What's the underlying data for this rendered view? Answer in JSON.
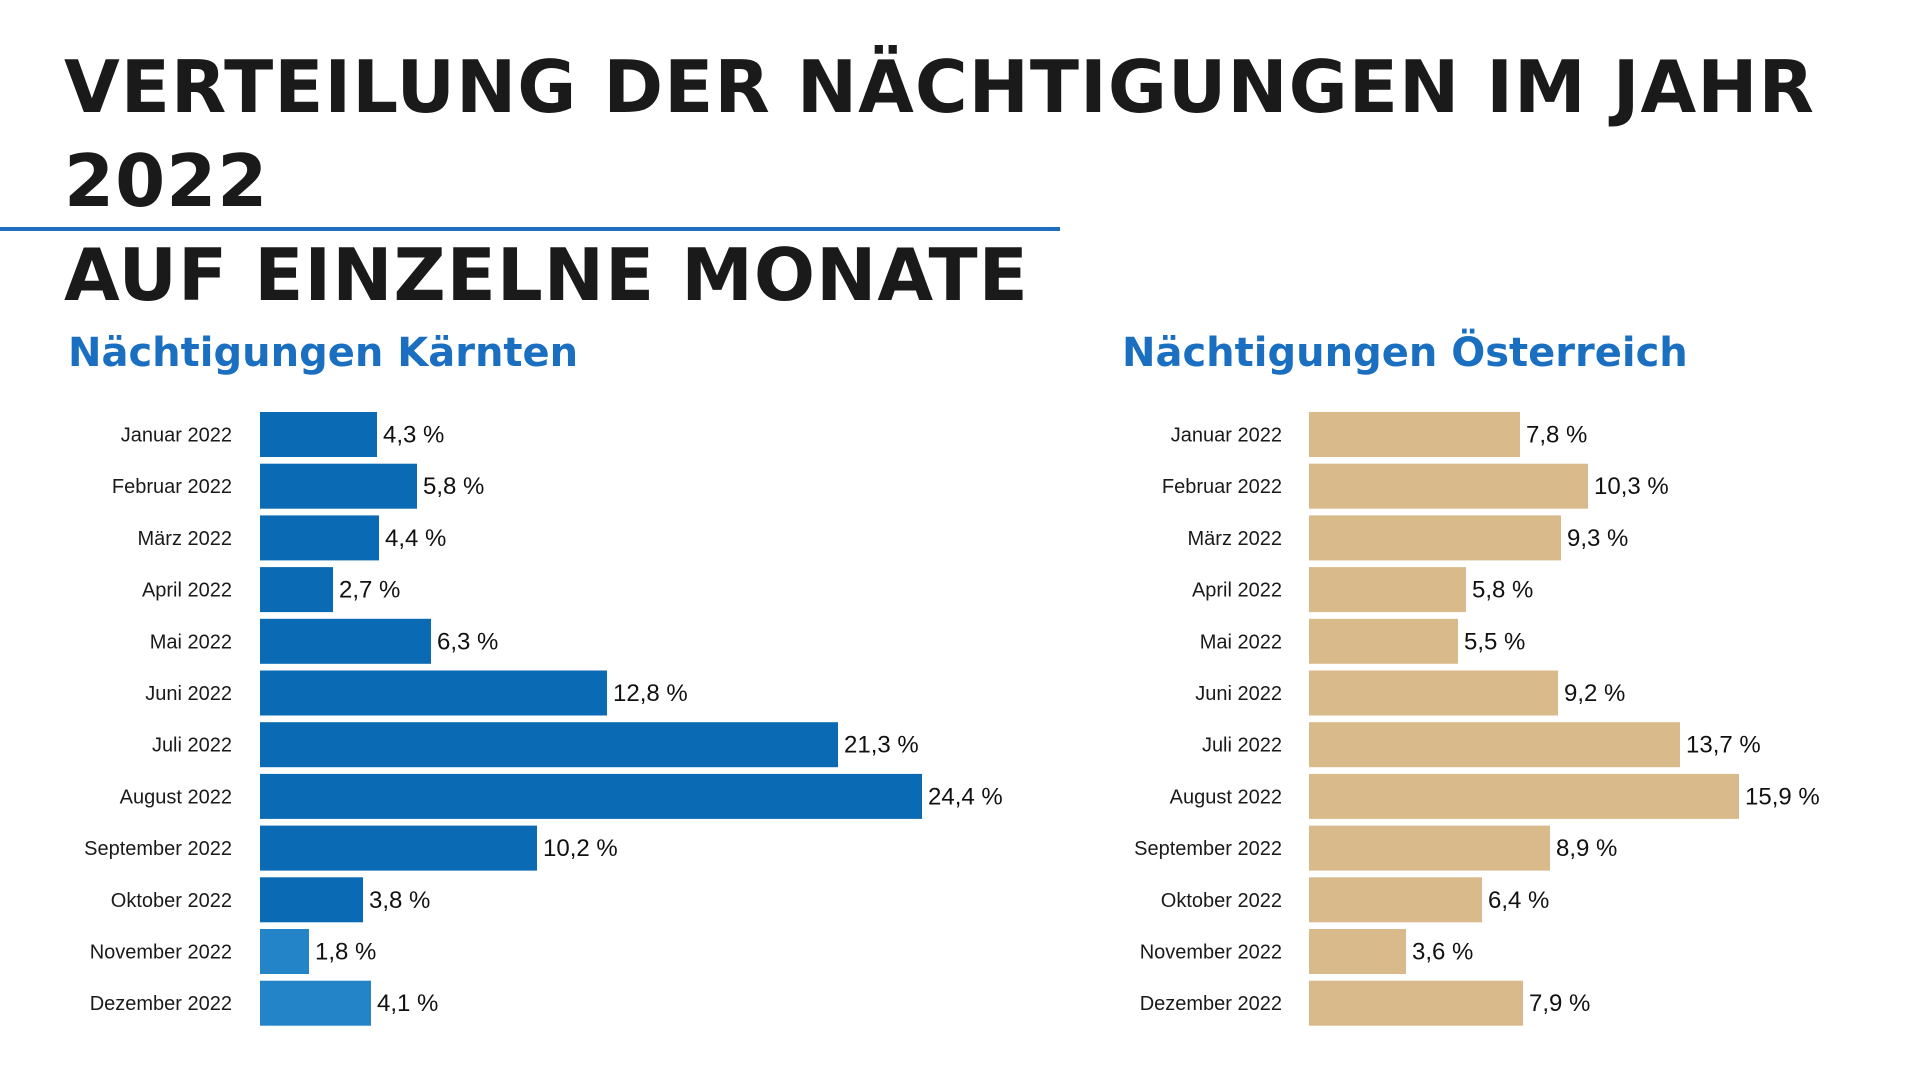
{
  "page": {
    "title_line1": "VERTEILUNG DER NÄCHTIGUNGEN IM JAHR 2022",
    "title_line2": "AUF EINZELNE MONATE"
  },
  "chart_data": [
    {
      "type": "bar",
      "orientation": "horizontal",
      "title": "Nächtigungen Kärnten",
      "categories": [
        "Januar 2022",
        "Februar 2022",
        "März 2022",
        "April 2022",
        "Mai 2022",
        "Juni 2022",
        "Juli 2022",
        "August 2022",
        "September 2022",
        "Oktober 2022",
        "November 2022",
        "Dezember 2022"
      ],
      "values": [
        4.3,
        5.8,
        4.4,
        2.7,
        6.3,
        12.8,
        21.3,
        24.4,
        10.2,
        3.8,
        1.8,
        4.1
      ],
      "value_labels": [
        "4,3 %",
        "5,8 %",
        "4,4 %",
        "2,7 %",
        "6,3 %",
        "12,8 %",
        "21,3 %",
        "24,4 %",
        "10,2 %",
        "3,8 %",
        "1,8 %",
        "4,1 %"
      ],
      "unit": "%",
      "bar_colors": [
        "#0a6ab4",
        "#0a6ab4",
        "#0a6ab4",
        "#0a6ab4",
        "#0a6ab4",
        "#0a6ab4",
        "#0a6ab4",
        "#0a6ab4",
        "#0a6ab4",
        "#0a6ab4",
        "#2384c8",
        "#2384c8"
      ],
      "xlim": [
        0,
        24.4
      ],
      "grid": false,
      "legend": "none"
    },
    {
      "type": "bar",
      "orientation": "horizontal",
      "title": "Nächtigungen Österreich",
      "categories": [
        "Januar 2022",
        "Februar 2022",
        "März 2022",
        "April 2022",
        "Mai 2022",
        "Juni 2022",
        "Juli 2022",
        "August 2022",
        "September 2022",
        "Oktober 2022",
        "November 2022",
        "Dezember 2022"
      ],
      "values": [
        7.8,
        10.3,
        9.3,
        5.8,
        5.5,
        9.2,
        13.7,
        15.9,
        8.9,
        6.4,
        3.6,
        7.9
      ],
      "value_labels": [
        "7,8 %",
        "10,3 %",
        "9,3 %",
        "5,8 %",
        "5,5 %",
        "9,2 %",
        "13,7 %",
        "15,9 %",
        "8,9 %",
        "6,4 %",
        "3,6 %",
        "7,9 %"
      ],
      "unit": "%",
      "bar_colors": [
        "#d9bb8b",
        "#d9bb8b",
        "#d9bb8b",
        "#d9bb8b",
        "#d9bb8b",
        "#d9bb8b",
        "#d9bb8b",
        "#d9bb8b",
        "#d9bb8b",
        "#d9bb8b",
        "#d9bb8b",
        "#d9bb8b"
      ],
      "xlim": [
        0,
        15.9
      ],
      "grid": false,
      "legend": "none"
    }
  ]
}
